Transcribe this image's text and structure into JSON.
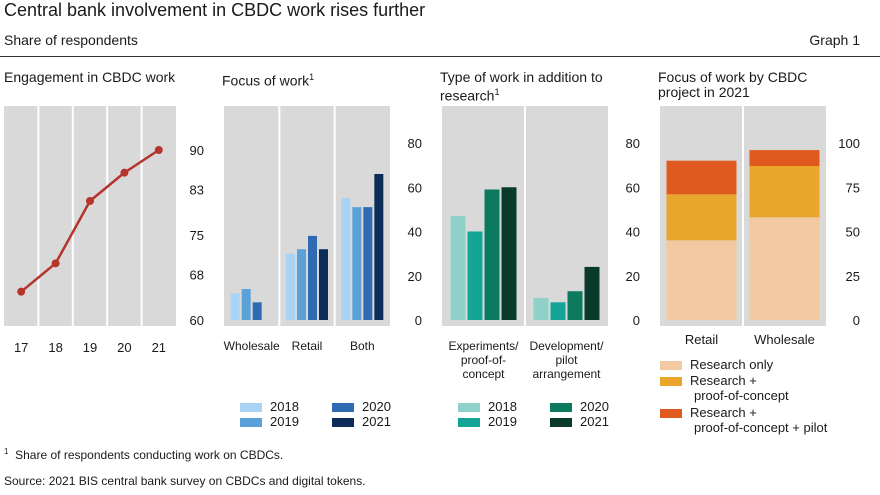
{
  "header": {
    "title": "Central bank involvement in CBDC work rises further",
    "subtitle": "Share of respondents",
    "graph_label": "Graph 1"
  },
  "panels": {
    "p1": {
      "title": "Engagement in CBDC work"
    },
    "p2": {
      "title": "Focus of work",
      "sup": "1"
    },
    "p3": {
      "title_line1": "Type of work in addition to",
      "title_line2": "research",
      "sup": "1"
    },
    "p4": {
      "title_line1": "Focus of work by CBDC",
      "title_line2": "project in 2021"
    }
  },
  "legends": {
    "focus": [
      "2018",
      "2019",
      "2020",
      "2021"
    ],
    "type": [
      "2018",
      "2019",
      "2020",
      "2021"
    ],
    "project": [
      "Research only",
      "Research +",
      "proof-of-concept",
      "Research +",
      "proof-of-concept + pilot"
    ]
  },
  "footnotes": {
    "note1_mark": "1",
    "note1": "Share of respondents conducting work on CBDCs.",
    "source": "Source: 2021 BIS central bank survey on CBDCs and digital tokens."
  },
  "chart_data": [
    {
      "id": "engagement",
      "type": "line",
      "title": "Engagement in CBDC work",
      "x": [
        2017,
        2018,
        2019,
        2020,
        2021
      ],
      "x_tick_labels": [
        "17",
        "18",
        "19",
        "20",
        "21"
      ],
      "values": [
        65,
        70,
        81,
        86,
        90
      ],
      "y_ticks": [
        "60",
        "68",
        "75",
        "83",
        "90"
      ],
      "ylim": [
        60,
        90
      ],
      "color": "#b5342c"
    },
    {
      "id": "focus",
      "type": "bar",
      "title": "Focus of work",
      "categories": [
        "Wholesale",
        "Retail",
        "Both"
      ],
      "series": [
        {
          "name": "2018",
          "values": [
            12,
            30,
            55
          ],
          "color": "#a9d3f5"
        },
        {
          "name": "2019",
          "values": [
            14,
            32,
            51
          ],
          "color": "#5aa1d8"
        },
        {
          "name": "2020",
          "values": [
            8,
            38,
            51
          ],
          "color": "#2f6bb3"
        },
        {
          "name": "2021",
          "values": null,
          "values_shown": [
            0,
            32,
            66
          ],
          "color": "#0c2d58"
        }
      ],
      "y_ticks": [
        "0",
        "20",
        "40",
        "60",
        "80"
      ],
      "ylim": [
        0,
        80
      ]
    },
    {
      "id": "type",
      "type": "bar",
      "title": "Type of work in addition to research",
      "categories": [
        "Experiments/ proof-of- concept",
        "Development/ pilot arrangement"
      ],
      "category_lines": [
        [
          "Experiments/",
          "proof-of-",
          "concept"
        ],
        [
          "Development/",
          "pilot",
          "arrangement"
        ]
      ],
      "series": [
        {
          "name": "2018",
          "values": [
            47,
            10
          ],
          "color": "#8fd1c8"
        },
        {
          "name": "2019",
          "values": [
            40,
            8
          ],
          "color": "#14a596"
        },
        {
          "name": "2020",
          "values": [
            59,
            13
          ],
          "color": "#0b7a5f"
        },
        {
          "name": "2021",
          "values": [
            60,
            24
          ],
          "color": "#0a3a2c"
        }
      ],
      "y_ticks": [
        "0",
        "20",
        "40",
        "60",
        "80"
      ],
      "ylim": [
        0,
        80
      ]
    },
    {
      "id": "project",
      "type": "bar",
      "stacked": true,
      "title": "Focus of work by CBDC project in 2021",
      "categories": [
        "Retail",
        "Wholesale"
      ],
      "series": [
        {
          "name": "Research only",
          "values": [
            45,
            58
          ],
          "color": "#f2c9a1"
        },
        {
          "name": "Research + proof-of-concept",
          "values": [
            26,
            29
          ],
          "color": "#e9a62a"
        },
        {
          "name": "Research + proof-of-concept + pilot",
          "values": [
            19,
            9
          ],
          "color": "#e05a20"
        }
      ],
      "y_ticks": [
        "0",
        "25",
        "50",
        "75",
        "100"
      ],
      "ylim": [
        0,
        100
      ]
    }
  ]
}
